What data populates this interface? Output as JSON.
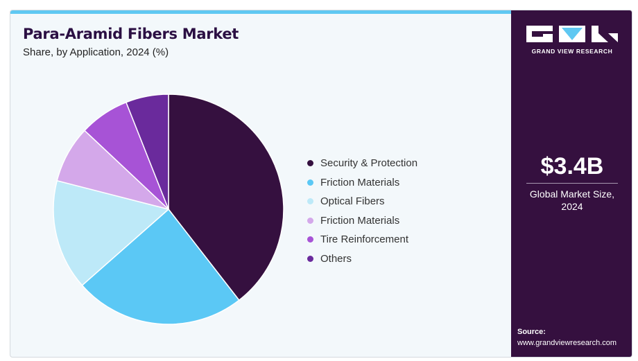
{
  "header": {
    "title": "Para-Aramid Fibers Market",
    "subtitle": "Share, by Application, 2024 (%)"
  },
  "brand": {
    "name": "GRAND VIEW RESEARCH",
    "accent_color": "#5fc8f2",
    "panel_color": "#35103f"
  },
  "summary": {
    "value": "$3.4B",
    "label_line1": "Global Market Size,",
    "label_line2": "2024"
  },
  "source": {
    "label": "Source:",
    "url": "www.grandviewresearch.com"
  },
  "chart_data": {
    "type": "pie",
    "title": "Para-Aramid Fibers Market",
    "subtitle": "Share, by Application, 2024 (%)",
    "legend_position": "right",
    "slices": [
      {
        "label": "Security & Protection",
        "value": 39.5,
        "color": "#35103f"
      },
      {
        "label": "Friction Materials",
        "value": 24.0,
        "color": "#5bc8f5"
      },
      {
        "label": "Optical Fibers",
        "value": 15.5,
        "color": "#bde9f8"
      },
      {
        "label": "Friction Materials",
        "value": 8.0,
        "color": "#d4a8ea"
      },
      {
        "label": "Tire Reinforcement",
        "value": 7.0,
        "color": "#a753d6"
      },
      {
        "label": "Others",
        "value": 6.0,
        "color": "#6a2a9c"
      }
    ]
  }
}
